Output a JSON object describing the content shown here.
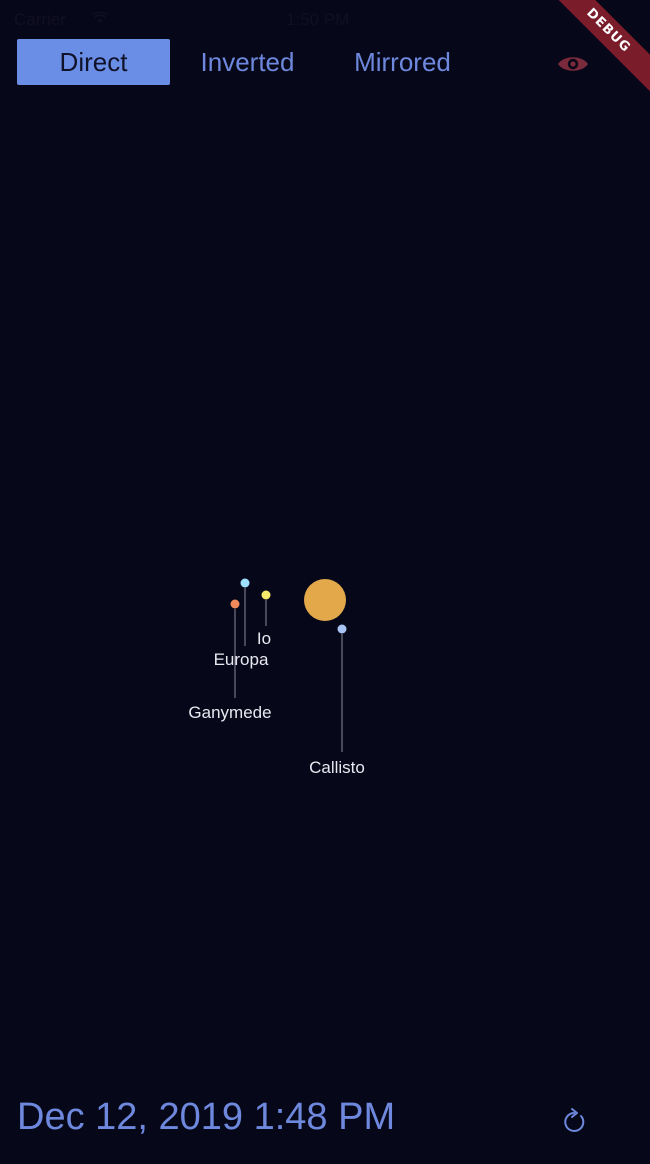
{
  "status_bar": {
    "carrier": "Carrier",
    "time": "1:50 PM"
  },
  "view_modes": {
    "selected": "Direct",
    "options": [
      "Direct",
      "Inverted",
      "Mirrored"
    ]
  },
  "debug_banner": {
    "label": "DEBUG"
  },
  "icons": {
    "visibility": "eye-icon",
    "refresh": "refresh-icon"
  },
  "jupiter": {
    "color": "#e2a84a"
  },
  "moons": [
    {
      "name": "Io",
      "color": "#f4e86a"
    },
    {
      "name": "Europa",
      "color": "#9fe0ff"
    },
    {
      "name": "Ganymede",
      "color": "#f08a5a"
    },
    {
      "name": "Callisto",
      "color": "#a8c4f4"
    }
  ],
  "footer": {
    "datetime": "Dec 12, 2019 1:48 PM"
  },
  "colors": {
    "background": "#07071a",
    "accent": "#6d88dc",
    "eye": "#7a2a3a",
    "label": "#e8e8f0"
  }
}
